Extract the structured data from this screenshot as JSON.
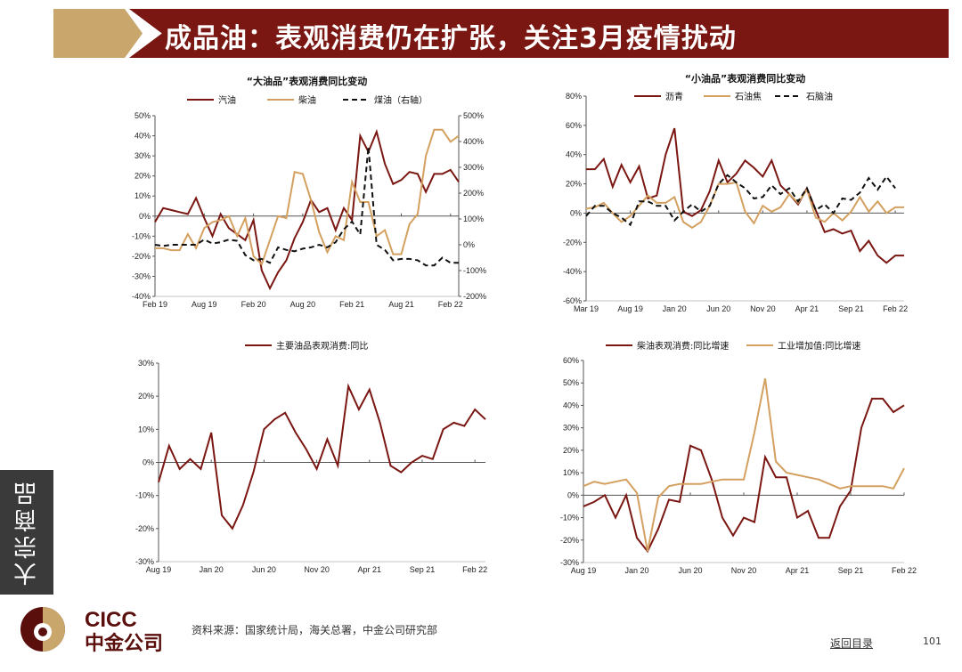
{
  "header": {
    "title": "成品油：表观消费仍在扩张，关注3月疫情扰动"
  },
  "side_tab": "大宗商品",
  "footer": {
    "source": "资料来源：国家统计局，海关总署，中金公司研究部",
    "back_link": "返回目录",
    "page_number": "101",
    "logo_en": "CICC",
    "logo_cn": "中金公司"
  },
  "colors": {
    "dark_red": "#7a1712",
    "gold": "#d4a060",
    "black": "#111111"
  },
  "chart_data": [
    {
      "type": "line",
      "title": "“大油品”表观消费同比变动",
      "ylim": [
        -40,
        50
      ],
      "yticks": [
        "-40%",
        "-30%",
        "-20%",
        "-10%",
        "0%",
        "10%",
        "20%",
        "30%",
        "40%",
        "50%"
      ],
      "y2lim": [
        -200,
        500
      ],
      "y2ticks": [
        "-200%",
        "-100%",
        "0%",
        "100%",
        "200%",
        "300%",
        "400%",
        "500%"
      ],
      "xticks": [
        {
          "i": 0,
          "label": "Feb 19"
        },
        {
          "i": 6,
          "label": "Aug 19"
        },
        {
          "i": 12,
          "label": "Feb 20"
        },
        {
          "i": 18,
          "label": "Aug 20"
        },
        {
          "i": 24,
          "label": "Feb 21"
        },
        {
          "i": 30,
          "label": "Aug 21"
        },
        {
          "i": 36,
          "label": "Feb 22"
        }
      ],
      "series": [
        {
          "name": "汽油",
          "color": "#7a1712",
          "axis": "left",
          "values": [
            -3,
            4,
            3,
            2,
            1,
            9,
            -1,
            -10,
            1,
            -6,
            -9,
            -12,
            -2,
            -27,
            -36,
            -28,
            -22,
            -11,
            -3,
            8,
            2,
            4,
            -7,
            4,
            -2,
            40,
            32,
            42,
            26,
            16,
            18,
            22,
            21,
            12,
            21,
            21,
            23,
            17
          ]
        },
        {
          "name": "柴油",
          "color": "#d4a060",
          "axis": "left",
          "values": [
            -16,
            -16,
            -17,
            -17,
            -9,
            -16,
            -6,
            -3,
            -2,
            0,
            -10,
            -1,
            -20,
            -24,
            -12,
            0,
            -1,
            22,
            21,
            8,
            -8,
            -18,
            -10,
            -12,
            17,
            7,
            7,
            -10,
            -7,
            -19,
            -19,
            -4,
            1,
            30,
            43,
            43,
            37,
            40
          ]
        },
        {
          "name": "煤油（右轴）",
          "color": "#111111",
          "axis": "right",
          "dashed": true,
          "values": [
            0,
            -5,
            0,
            0,
            0,
            0,
            20,
            5,
            10,
            20,
            15,
            -40,
            -60,
            -55,
            -70,
            -10,
            -20,
            -25,
            -15,
            -10,
            0,
            -10,
            10,
            60,
            90,
            40,
            380,
            0,
            -20,
            -60,
            -55,
            -55,
            -60,
            -80,
            -80,
            -50,
            -70,
            -70
          ]
        }
      ]
    },
    {
      "type": "line",
      "title": "“小油品”表观消费同比变动",
      "ylim": [
        -60,
        80
      ],
      "yticks": [
        "-60%",
        "-40%",
        "-20%",
        "0%",
        "20%",
        "40%",
        "60%",
        "80%"
      ],
      "xticks": [
        {
          "i": 0,
          "label": "Mar 19"
        },
        {
          "i": 5,
          "label": "Aug 19"
        },
        {
          "i": 10,
          "label": "Jan 20"
        },
        {
          "i": 15,
          "label": "Jun 20"
        },
        {
          "i": 20,
          "label": "Nov 20"
        },
        {
          "i": 25,
          "label": "Apr 21"
        },
        {
          "i": 30,
          "label": "Sep 21"
        },
        {
          "i": 35,
          "label": "Feb 22"
        }
      ],
      "series": [
        {
          "name": "沥青",
          "color": "#7a1712",
          "values": [
            30,
            30,
            37,
            18,
            33,
            21,
            32,
            10,
            12,
            40,
            58,
            1,
            -2,
            2,
            15,
            36,
            21,
            27,
            36,
            31,
            25,
            36,
            19,
            13,
            6,
            17,
            2,
            -13,
            -11,
            -14,
            -12,
            -26,
            -19,
            -29,
            -34,
            -29,
            -29
          ]
        },
        {
          "name": "石油焦",
          "color": "#d4a060",
          "values": [
            3,
            4,
            7,
            0,
            -6,
            -2,
            5,
            12,
            7,
            7,
            11,
            -6,
            -10,
            -6,
            5,
            20,
            20,
            21,
            1,
            -7,
            5,
            1,
            4,
            13,
            7,
            16,
            -3,
            -6,
            0,
            -5,
            1,
            11,
            1,
            8,
            0,
            4,
            4
          ]
        },
        {
          "name": "石脑油",
          "color": "#111111",
          "dashed": true,
          "values": [
            -2,
            5,
            5,
            0,
            -3,
            -8,
            8,
            8,
            5,
            5,
            -5,
            1,
            6,
            1,
            5,
            20,
            26,
            21,
            17,
            10,
            11,
            19,
            13,
            17,
            8,
            17,
            2,
            6,
            0,
            10,
            9,
            14,
            24,
            16,
            25,
            17
          ]
        }
      ]
    },
    {
      "type": "line",
      "title": "",
      "ylim": [
        -30,
        30
      ],
      "yticks": [
        "-30%",
        "-20%",
        "-10%",
        "0%",
        "10%",
        "20%",
        "30%"
      ],
      "xticks": [
        {
          "i": 0,
          "label": "Aug 19"
        },
        {
          "i": 5,
          "label": "Jan 20"
        },
        {
          "i": 10,
          "label": "Jun 20"
        },
        {
          "i": 15,
          "label": "Nov 20"
        },
        {
          "i": 20,
          "label": "Apr 21"
        },
        {
          "i": 25,
          "label": "Sep 21"
        },
        {
          "i": 30,
          "label": "Feb 22"
        }
      ],
      "series": [
        {
          "name": "主要油品表观消费:同比",
          "color": "#7a1712",
          "values": [
            -6,
            5,
            -2,
            1,
            -2,
            9,
            -16,
            -20,
            -13,
            -3,
            10,
            13,
            15,
            9,
            4,
            -2,
            7,
            -1,
            23,
            16,
            22,
            12,
            -1,
            -3,
            0,
            2,
            1,
            10,
            12,
            11,
            16,
            13
          ]
        }
      ]
    },
    {
      "type": "line",
      "title": "",
      "ylim": [
        -30,
        60
      ],
      "yticks": [
        "-30%",
        "-20%",
        "-10%",
        "0%",
        "10%",
        "20%",
        "30%",
        "40%",
        "50%",
        "60%"
      ],
      "xticks": [
        {
          "i": 0,
          "label": "Aug 19"
        },
        {
          "i": 5,
          "label": "Jan 20"
        },
        {
          "i": 10,
          "label": "Jun 20"
        },
        {
          "i": 15,
          "label": "Nov 20"
        },
        {
          "i": 20,
          "label": "Apr 21"
        },
        {
          "i": 25,
          "label": "Sep 21"
        },
        {
          "i": 30,
          "label": "Feb 22"
        }
      ],
      "series": [
        {
          "name": "柴油表观消费:同比增速",
          "color": "#7a1712",
          "values": [
            -5,
            -3,
            0,
            -10,
            0,
            -19,
            -25,
            -15,
            -2,
            -3,
            22,
            20,
            7,
            -10,
            -18,
            -10,
            -12,
            17,
            8,
            8,
            -10,
            -7,
            -19,
            -19,
            -5,
            2,
            30,
            43,
            43,
            37,
            40
          ]
        },
        {
          "name": "工业增加值:同比增速",
          "color": "#d4a060",
          "values": [
            4,
            6,
            5,
            6,
            7,
            1,
            -25,
            -1,
            4,
            5,
            5,
            5,
            6,
            7,
            7,
            7,
            28,
            52,
            15,
            10,
            9,
            8,
            7,
            5,
            3,
            4,
            4,
            4,
            4,
            3,
            12
          ]
        }
      ]
    }
  ]
}
